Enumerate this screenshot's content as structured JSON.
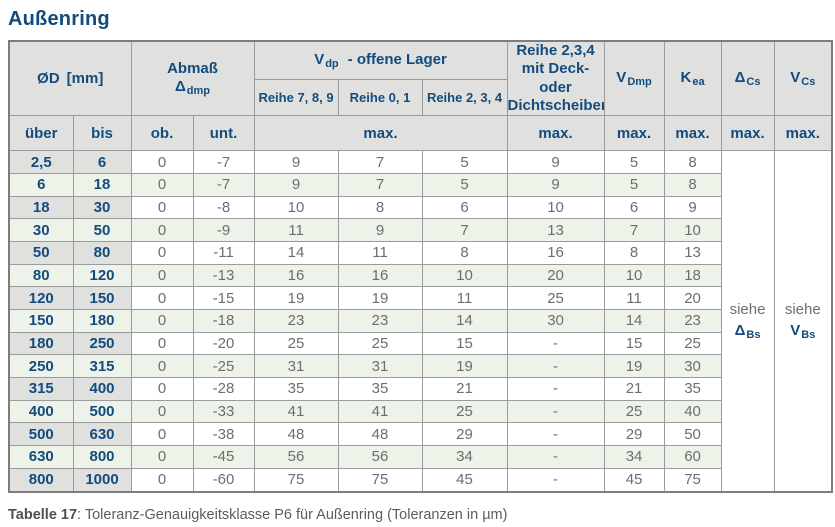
{
  "title": "Außenring",
  "caption": {
    "bold": "Tabelle 17",
    "rest": ": Toleranz-Genauigkeitsklasse P6 für Außenring (Toleranzen in µm)"
  },
  "colors": {
    "accent_blue": "#134b7e",
    "header_gray": "#e0e1df",
    "row_green": "#edf3e9",
    "data_gray": "#6e6e6e",
    "border_gray": "#9b9b9b"
  },
  "table": {
    "header": {
      "d_label": "ØD",
      "d_unit": "[mm]",
      "abmass": "Abmaß",
      "abmass_sym": "Δ",
      "abmass_sub": "dmp",
      "vdp_sym": "V",
      "vdp_sub": "dp",
      "vdp_rest": "-  offene Lager",
      "reihe789": "Reihe 7, 8, 9",
      "reihe01": "Reihe 0, 1",
      "reihe234": "Reihe 2, 3, 4",
      "deck_lines": [
        "Reihe 2,3,4",
        "mit Deck- oder",
        "Dichtscheiben"
      ],
      "vdmp_sym": "V",
      "vdmp_sub": "Dmp",
      "kea_sym": "K",
      "kea_sub": "ea",
      "dcs_sym": "Δ",
      "dcs_sub": "Cs",
      "vcs_sym": "V",
      "vcs_sub": "Cs",
      "ueber": "über",
      "bis": "bis",
      "ob": "ob.",
      "unt": "unt.",
      "max": "max."
    },
    "see_dbs": {
      "word": "siehe",
      "sym": "Δ",
      "sub": "Bs"
    },
    "see_vbs": {
      "word": "siehe",
      "sym": "V",
      "sub": "Bs"
    },
    "col_keys": [
      "ueber",
      "bis",
      "ob",
      "unt",
      "reihe789",
      "reihe01",
      "reihe234",
      "deck",
      "vdmp",
      "kea"
    ],
    "rows": [
      [
        "2,5",
        "6",
        "0",
        "-7",
        "9",
        "7",
        "5",
        "9",
        "5",
        "8"
      ],
      [
        "6",
        "18",
        "0",
        "-7",
        "9",
        "7",
        "5",
        "9",
        "5",
        "8"
      ],
      [
        "18",
        "30",
        "0",
        "-8",
        "10",
        "8",
        "6",
        "10",
        "6",
        "9"
      ],
      [
        "30",
        "50",
        "0",
        "-9",
        "11",
        "9",
        "7",
        "13",
        "7",
        "10"
      ],
      [
        "50",
        "80",
        "0",
        "-11",
        "14",
        "11",
        "8",
        "16",
        "8",
        "13"
      ],
      [
        "80",
        "120",
        "0",
        "-13",
        "16",
        "16",
        "10",
        "20",
        "10",
        "18"
      ],
      [
        "120",
        "150",
        "0",
        "-15",
        "19",
        "19",
        "11",
        "25",
        "11",
        "20"
      ],
      [
        "150",
        "180",
        "0",
        "-18",
        "23",
        "23",
        "14",
        "30",
        "14",
        "23"
      ],
      [
        "180",
        "250",
        "0",
        "-20",
        "25",
        "25",
        "15",
        "-",
        "15",
        "25"
      ],
      [
        "250",
        "315",
        "0",
        "-25",
        "31",
        "31",
        "19",
        "-",
        "19",
        "30"
      ],
      [
        "315",
        "400",
        "0",
        "-28",
        "35",
        "35",
        "21",
        "-",
        "21",
        "35"
      ],
      [
        "400",
        "500",
        "0",
        "-33",
        "41",
        "41",
        "25",
        "-",
        "25",
        "40"
      ],
      [
        "500",
        "630",
        "0",
        "-38",
        "48",
        "48",
        "29",
        "-",
        "29",
        "50"
      ],
      [
        "630",
        "800",
        "0",
        "-45",
        "56",
        "56",
        "34",
        "-",
        "34",
        "60"
      ],
      [
        "800",
        "1000",
        "0",
        "-60",
        "75",
        "75",
        "45",
        "-",
        "45",
        "75"
      ]
    ]
  }
}
